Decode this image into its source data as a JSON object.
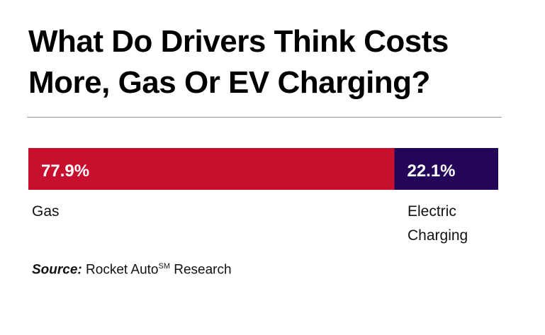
{
  "chart_data": {
    "type": "bar",
    "orientation": "horizontal-stacked",
    "title": "What Do Drivers Think Costs More, Gas Or EV Charging?",
    "categories": [
      "Gas",
      "Electric Charging"
    ],
    "values": [
      77.9,
      22.1
    ],
    "value_labels": [
      "77.9%",
      "22.1%"
    ],
    "colors": [
      "#c8102e",
      "#23065a"
    ],
    "xlim": [
      0,
      100
    ]
  },
  "source": {
    "label": "Source:",
    "text": "Rocket Auto",
    "sup": "SM",
    "text2": " Research"
  }
}
